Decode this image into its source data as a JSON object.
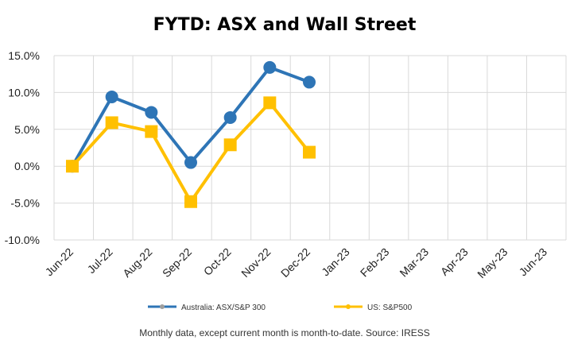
{
  "chart_data": {
    "type": "line",
    "title": "FYTD: ASX and Wall Street",
    "categories": [
      "Jun-22",
      "Jul-22",
      "Aug-22",
      "Sep-22",
      "Oct-22",
      "Nov-22",
      "Dec-22",
      "Jan-23",
      "Feb-23",
      "Mar-23",
      "Apr-23",
      "May-23",
      "Jun-23"
    ],
    "ylim": [
      -10,
      15
    ],
    "yticks": [
      15,
      10,
      5,
      0,
      -5,
      -10
    ],
    "ytick_labels": [
      "15.0%",
      "10.0%",
      "5.0%",
      "0.0%",
      "-5.0%",
      "-10.0%"
    ],
    "grid": true,
    "legend_position": "bottom",
    "series": [
      {
        "name": "Australia: ASX/S&P 300",
        "color": "#2E75B6",
        "marker": "circle",
        "values": [
          0.0,
          9.4,
          7.3,
          0.5,
          6.6,
          13.4,
          11.4,
          null,
          null,
          null,
          null,
          null,
          null
        ]
      },
      {
        "name": "US: S&P500",
        "color": "#FFC000",
        "marker": "square",
        "values": [
          0.0,
          5.9,
          4.7,
          -4.8,
          2.9,
          8.6,
          1.9,
          null,
          null,
          null,
          null,
          null,
          null
        ]
      }
    ],
    "footnote": "Monthly data, except current month is month-to-date.  Source: IRESS"
  }
}
